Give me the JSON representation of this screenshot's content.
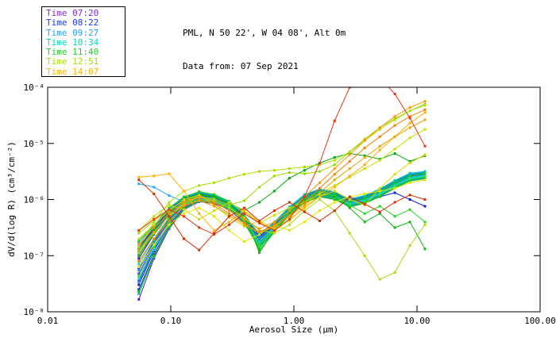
{
  "header": {
    "title_line1": "PML, N 50 22', W 04 08', Alt 0m",
    "title_line2": "Data from: 07 Sep 2021"
  },
  "chart_data": {
    "type": "line",
    "title": "PML, N 50 22', W 04 08', Alt 0m",
    "subtitle": "Data from: 07 Sep 2021",
    "xlabel": "Aerosol Size (μm)",
    "ylabel": "dV/d(log R) (cm³/cm⁻²)",
    "x_scale": "log",
    "y_scale": "log",
    "xlim": [
      0.01,
      100
    ],
    "ylim_log10": [
      -8,
      -4
    ],
    "grid": false,
    "legend_position": "top-left",
    "x_tick_values": [
      0.01,
      0.1,
      1,
      10,
      100
    ],
    "x_tick_labels": [
      "0.01",
      "0.10",
      "1.00",
      "10.00",
      "100.00"
    ],
    "y_tick_exponents": [
      -4,
      -5,
      -6,
      -7,
      -8
    ],
    "y_tick_labels": [
      "10⁻⁴",
      "10⁻⁵",
      "10⁻⁶",
      "10⁻⁷",
      "10⁻⁸"
    ],
    "legend": [
      {
        "label": "Time 07:20",
        "color": "#7b2ce0"
      },
      {
        "label": "Time 08:22",
        "color": "#2038ff"
      },
      {
        "label": "Time 09:27",
        "color": "#28a0ff"
      },
      {
        "label": "Time 10:34",
        "color": "#00e0b0"
      },
      {
        "label": "Time 11:40",
        "color": "#20d020"
      },
      {
        "label": "Time 12:51",
        "color": "#a8e000"
      },
      {
        "label": "Time 14:07",
        "color": "#ffb400"
      }
    ],
    "x_values_um": [
      0.055,
      0.073,
      0.097,
      0.128,
      0.17,
      0.225,
      0.298,
      0.395,
      0.524,
      0.694,
      0.92,
      1.22,
      1.62,
      2.14,
      2.84,
      3.76,
      4.99,
      6.61,
      8.76,
      11.6
    ],
    "series": [
      {
        "time": "07:20",
        "color": "#5a18c8",
        "log10_dVdlogR": [
          -7.78,
          -7.05,
          -6.52,
          -6.18,
          -6.04,
          -6.07,
          -6.18,
          -6.42,
          -6.85,
          -6.55,
          -6.28,
          -6.05,
          -5.94,
          -5.99,
          -6.12,
          -6.06,
          -5.94,
          -5.79,
          -5.66,
          -5.62
        ]
      },
      {
        "time": "07:20",
        "color": "#6a22d8",
        "log10_dVdlogR": [
          -7.32,
          -6.8,
          -6.38,
          -6.1,
          -5.99,
          -6.03,
          -6.14,
          -6.38,
          -6.78,
          -6.5,
          -6.23,
          -6.0,
          -5.9,
          -5.95,
          -6.08,
          -6.02,
          -5.9,
          -5.75,
          -5.62,
          -5.58
        ]
      },
      {
        "time": "07:20",
        "color": "#4810b0",
        "log10_dVdlogR": [
          -7.05,
          -6.62,
          -6.28,
          -6.04,
          -5.94,
          -5.99,
          -6.1,
          -6.34,
          -6.72,
          -6.46,
          -6.19,
          -5.97,
          -5.87,
          -5.92,
          -6.05,
          -5.99,
          -5.87,
          -5.72,
          -5.59,
          -5.55
        ]
      },
      {
        "time": "07:20",
        "color": "#7a2ce0",
        "log10_dVdlogR": [
          -6.88,
          -6.53,
          -6.21,
          -6.0,
          -5.9,
          -5.95,
          -6.07,
          -6.3,
          -6.68,
          -6.43,
          -6.16,
          -5.94,
          -5.84,
          -5.89,
          -6.02,
          -5.96,
          -5.84,
          -5.69,
          -5.56,
          -5.53
        ]
      },
      {
        "time": "07:20",
        "color": "#3c0a9e",
        "log10_dVdlogR": [
          -7.52,
          -6.92,
          -6.45,
          -6.14,
          -6.02,
          -6.05,
          -6.16,
          -6.4,
          -6.82,
          -6.52,
          -6.26,
          -6.03,
          -5.92,
          -5.97,
          -6.1,
          -6.04,
          -5.92,
          -5.77,
          -5.64,
          -5.6
        ]
      },
      {
        "time": "08:22",
        "color": "#1228e8",
        "log10_dVdlogR": [
          -7.6,
          -6.98,
          -6.48,
          -6.16,
          -6.03,
          -6.06,
          -6.17,
          -6.41,
          -6.84,
          -6.54,
          -6.27,
          -6.04,
          -5.93,
          -5.98,
          -6.11,
          -6.05,
          -5.93,
          -5.78,
          -5.65,
          -5.61
        ]
      },
      {
        "time": "08:22",
        "color": "#0a1cd0",
        "log10_dVdlogR": [
          -7.22,
          -6.75,
          -6.35,
          -6.08,
          -5.97,
          -6.01,
          -6.12,
          -6.36,
          -6.76,
          -6.48,
          -6.21,
          -5.99,
          -5.89,
          -5.94,
          -6.07,
          -6.01,
          -5.95,
          -5.88,
          -6.0,
          -6.12
        ]
      },
      {
        "time": "08:22",
        "color": "#2238ff",
        "log10_dVdlogR": [
          -7.0,
          -6.6,
          -6.26,
          -6.02,
          -5.93,
          -5.97,
          -6.09,
          -6.33,
          -6.71,
          -6.45,
          -6.18,
          -5.96,
          -5.86,
          -5.91,
          -6.04,
          -5.98,
          -5.86,
          -5.71,
          -5.58,
          -5.54
        ]
      },
      {
        "time": "08:22",
        "color": "#0518c0",
        "log10_dVdlogR": [
          -6.85,
          -6.51,
          -6.19,
          -5.98,
          -5.89,
          -5.94,
          -6.06,
          -6.29,
          -6.66,
          -6.42,
          -6.15,
          -5.93,
          -5.83,
          -5.88,
          -6.01,
          -5.95,
          -5.83,
          -5.68,
          -5.55,
          -5.52
        ]
      },
      {
        "time": "08:22",
        "color": "#1c30f4",
        "log10_dVdlogR": [
          -7.45,
          -6.88,
          -6.43,
          -6.12,
          -6.01,
          -6.04,
          -6.15,
          -6.39,
          -6.8,
          -6.51,
          -6.24,
          -6.02,
          -5.91,
          -5.96,
          -6.09,
          -6.03,
          -5.91,
          -5.76,
          -5.63,
          -5.59
        ]
      },
      {
        "time": "09:27",
        "color": "#28a8ff",
        "log10_dVdlogR": [
          -5.72,
          -5.78,
          -5.93,
          -6.04,
          -6.01,
          -6.04,
          -6.15,
          -6.38,
          -6.78,
          -6.5,
          -6.23,
          -6.01,
          -5.9,
          -5.95,
          -6.08,
          -6.02,
          -5.9,
          -5.75,
          -5.62,
          -5.58
        ]
      },
      {
        "time": "09:27",
        "color": "#1492ec",
        "log10_dVdlogR": [
          -7.26,
          -6.77,
          -6.36,
          -6.09,
          -5.98,
          -6.02,
          -6.13,
          -6.37,
          -6.77,
          -6.49,
          -6.22,
          -6.0,
          -5.89,
          -5.94,
          -6.07,
          -6.01,
          -5.89,
          -5.74,
          -5.61,
          -5.57
        ]
      },
      {
        "time": "09:27",
        "color": "#0a84dc",
        "log10_dVdlogR": [
          -6.96,
          -6.58,
          -6.24,
          -6.01,
          -5.92,
          -5.96,
          -6.08,
          -6.32,
          -6.7,
          -6.44,
          -6.17,
          -5.95,
          -5.85,
          -5.9,
          -6.03,
          -5.97,
          -5.85,
          -5.7,
          -5.57,
          -5.53
        ]
      },
      {
        "time": "09:27",
        "color": "#2ea2f8",
        "log10_dVdlogR": [
          -7.48,
          -6.9,
          -6.44,
          -6.13,
          -6.01,
          -6.05,
          -6.16,
          -6.4,
          -6.81,
          -6.52,
          -6.25,
          -6.02,
          -5.92,
          -5.97,
          -6.1,
          -6.04,
          -5.92,
          -5.77,
          -5.64,
          -5.6
        ]
      },
      {
        "time": "09:27",
        "color": "#10b2f0",
        "log10_dVdlogR": [
          -6.8,
          -6.49,
          -6.17,
          -5.97,
          -5.88,
          -5.93,
          -6.05,
          -6.28,
          -6.64,
          -6.41,
          -6.14,
          -5.92,
          -5.82,
          -5.87,
          -6.0,
          -5.94,
          -5.82,
          -5.67,
          -5.54,
          -5.51
        ]
      },
      {
        "time": "10:34",
        "color": "#00c8a4",
        "log10_dVdlogR": [
          -7.68,
          -7.02,
          -6.5,
          -6.17,
          -6.03,
          -6.06,
          -6.17,
          -6.41,
          -6.86,
          -6.55,
          -6.28,
          -6.05,
          -5.94,
          -5.99,
          -6.12,
          -6.06,
          -5.94,
          -5.79,
          -5.66,
          -5.61
        ]
      },
      {
        "time": "10:34",
        "color": "#00dcc0",
        "log10_dVdlogR": [
          -7.15,
          -6.72,
          -6.33,
          -6.07,
          -5.96,
          -6.0,
          -6.11,
          -6.35,
          -6.75,
          -6.47,
          -6.2,
          -5.98,
          -5.88,
          -5.93,
          -6.06,
          -6.0,
          -5.88,
          -5.73,
          -5.6,
          -5.56
        ]
      },
      {
        "time": "10:34",
        "color": "#00b48c",
        "log10_dVdlogR": [
          -6.92,
          -6.56,
          -6.23,
          -6.0,
          -5.91,
          -5.95,
          -6.07,
          -6.31,
          -6.69,
          -6.43,
          -6.16,
          -5.94,
          -5.84,
          -5.89,
          -6.02,
          -5.96,
          -5.84,
          -5.69,
          -5.56,
          -5.52
        ]
      },
      {
        "time": "10:34",
        "color": "#0ce4cc",
        "log10_dVdlogR": [
          -7.4,
          -6.86,
          -6.42,
          -6.11,
          -6.0,
          -6.03,
          -6.14,
          -6.38,
          -6.79,
          -6.5,
          -6.23,
          -6.01,
          -5.9,
          -5.95,
          -6.08,
          -6.02,
          -5.9,
          -5.75,
          -5.62,
          -5.58
        ]
      },
      {
        "time": "10:34",
        "color": "#00c2b2",
        "log10_dVdlogR": [
          -6.76,
          -6.47,
          -6.16,
          -5.96,
          -5.87,
          -5.92,
          -6.04,
          -6.27,
          -6.62,
          -6.4,
          -6.13,
          -5.91,
          -5.81,
          -5.86,
          -5.99,
          -5.93,
          -5.81,
          -5.66,
          -5.53,
          -5.5
        ]
      },
      {
        "time": "11:40",
        "color": "#14bc14",
        "log10_dVdlogR": [
          -7.64,
          -7.0,
          -6.49,
          -6.16,
          -6.02,
          -6.05,
          -6.16,
          -6.4,
          -6.88,
          -6.56,
          -6.29,
          -6.06,
          -5.95,
          -6.0,
          -6.13,
          -6.07,
          -5.95,
          -5.8,
          -5.67,
          -5.63
        ]
      },
      {
        "time": "11:40",
        "color": "#24d424",
        "log10_dVdlogR": [
          -7.1,
          -6.7,
          -6.32,
          -6.06,
          -5.95,
          -5.99,
          -6.1,
          -6.34,
          -6.8,
          -6.48,
          -6.21,
          -5.99,
          -5.89,
          -5.94,
          -6.1,
          -6.25,
          -6.12,
          -6.3,
          -6.18,
          -6.4
        ]
      },
      {
        "time": "11:40",
        "color": "#06aa0e",
        "log10_dVdlogR": [
          -6.88,
          -6.54,
          -6.22,
          -5.99,
          -5.9,
          -5.94,
          -6.06,
          -6.2,
          -6.05,
          -5.85,
          -5.62,
          -5.48,
          -5.35,
          -5.25,
          -5.18,
          -5.22,
          -5.28,
          -5.18,
          -5.32,
          -5.22
        ]
      },
      {
        "time": "11:40",
        "color": "#30e030",
        "log10_dVdlogR": [
          -7.36,
          -6.84,
          -6.41,
          -6.1,
          -5.99,
          -6.02,
          -6.13,
          -6.37,
          -6.84,
          -6.53,
          -6.26,
          -6.03,
          -5.92,
          -5.97,
          -6.1,
          -6.04,
          -5.92,
          -5.77,
          -5.64,
          -5.59
        ]
      },
      {
        "time": "11:40",
        "color": "#1cc81c",
        "log10_dVdlogR": [
          -6.73,
          -6.46,
          -6.15,
          -5.95,
          -5.86,
          -5.91,
          -6.03,
          -6.26,
          -6.95,
          -6.55,
          -6.18,
          -5.96,
          -5.86,
          -5.91,
          -6.04,
          -5.98,
          -5.86,
          -5.71,
          -5.58,
          -5.54
        ]
      },
      {
        "time": "11:40",
        "color": "#0cb814",
        "log10_dVdlogR": [
          -7.0,
          -6.61,
          -6.27,
          -6.03,
          -5.92,
          -5.96,
          -6.08,
          -6.32,
          -6.92,
          -6.58,
          -6.24,
          -6.0,
          -5.9,
          -5.95,
          -6.15,
          -6.4,
          -6.25,
          -6.5,
          -6.4,
          -6.88
        ]
      },
      {
        "time": "12:51",
        "color": "#9cd800",
        "log10_dVdlogR": [
          -6.6,
          -6.38,
          -6.18,
          -6.03,
          -5.94,
          -5.99,
          -6.1,
          -6.02,
          -5.78,
          -5.58,
          -5.52,
          -5.54,
          -5.5,
          -5.38,
          -5.15,
          -4.92,
          -4.72,
          -4.56,
          -4.42,
          -4.3
        ]
      },
      {
        "time": "12:51",
        "color": "#aae000",
        "log10_dVdlogR": [
          -6.85,
          -6.4,
          -6.05,
          -5.85,
          -5.75,
          -5.7,
          -5.62,
          -5.55,
          -5.5,
          -5.48,
          -5.45,
          -5.42,
          -5.38,
          -5.3,
          -5.15,
          -4.95,
          -4.75,
          -4.58,
          -4.42,
          -4.32
        ]
      },
      {
        "time": "12:51",
        "color": "#c4e000",
        "log10_dVdlogR": [
          -6.55,
          -6.3,
          -6.1,
          -6.18,
          -6.35,
          -6.2,
          -6.05,
          -6.22,
          -6.42,
          -6.28,
          -6.15,
          -6.05,
          -5.9,
          -5.75,
          -5.6,
          -5.45,
          -5.3,
          -5.1,
          -4.9,
          -4.75
        ]
      },
      {
        "time": "12:51",
        "color": "#e4e400",
        "log10_dVdlogR": [
          -7.2,
          -6.8,
          -6.45,
          -6.25,
          -6.15,
          -6.3,
          -6.55,
          -6.75,
          -6.62,
          -6.45,
          -6.55,
          -6.4,
          -6.2,
          -6.05,
          -5.95,
          -5.9,
          -5.85,
          -5.8,
          -5.7,
          -5.65
        ]
      },
      {
        "time": "12:51",
        "color": "#b2d810",
        "log10_dVdlogR": [
          -6.95,
          -6.6,
          -6.28,
          -6.08,
          -5.96,
          -6.02,
          -6.15,
          -6.32,
          -6.55,
          -6.6,
          -6.45,
          -6.2,
          -6.0,
          -6.2,
          -6.6,
          -7.0,
          -7.42,
          -7.3,
          -6.82,
          -6.45
        ]
      },
      {
        "time": "12:51",
        "color": "#d8d800",
        "log10_dVdlogR": [
          -6.7,
          -6.45,
          -6.2,
          -6.0,
          -5.92,
          -6.1,
          -6.32,
          -6.48,
          -6.38,
          -6.52,
          -6.38,
          -6.12,
          -5.95,
          -5.85,
          -6.0,
          -6.1,
          -5.8,
          -5.55,
          -5.35,
          -5.2
        ]
      },
      {
        "time": "14:07",
        "color": "#ffb000",
        "log10_dVdlogR": [
          -5.6,
          -5.58,
          -5.54,
          -5.85,
          -6.25,
          -6.55,
          -6.4,
          -6.2,
          -6.4,
          -6.56,
          -6.35,
          -6.15,
          -5.95,
          -5.78,
          -5.58,
          -5.38,
          -5.12,
          -4.88,
          -4.64,
          -4.45
        ]
      },
      {
        "time": "14:07",
        "color": "#ff9400",
        "log10_dVdlogR": [
          -6.8,
          -6.5,
          -6.25,
          -6.05,
          -5.95,
          -6.05,
          -6.2,
          -6.35,
          -6.52,
          -6.4,
          -6.2,
          -5.95,
          -5.7,
          -5.45,
          -5.2,
          -4.95,
          -4.72,
          -4.52,
          -4.36,
          -4.25
        ]
      },
      {
        "time": "14:07",
        "color": "#f08000",
        "log10_dVdlogR": [
          -7.1,
          -6.7,
          -6.38,
          -6.12,
          -6.0,
          -6.08,
          -6.25,
          -6.42,
          -6.58,
          -6.45,
          -6.28,
          -6.05,
          -5.8,
          -5.55,
          -5.32,
          -5.08,
          -4.88,
          -4.68,
          -4.52,
          -4.4
        ]
      },
      {
        "time": "14:07",
        "color": "#e8a400",
        "log10_dVdlogR": [
          -6.9,
          -6.58,
          -6.3,
          -6.1,
          -6.02,
          -6.12,
          -6.28,
          -6.45,
          -6.6,
          -6.48,
          -6.3,
          -6.1,
          -5.88,
          -5.65,
          -5.45,
          -5.25,
          -5.05,
          -4.88,
          -4.72,
          -4.58
        ]
      },
      {
        "time": "14:07",
        "color": "#e83410",
        "log10_dVdlogR": [
          -6.55,
          -6.35,
          -6.18,
          -6.3,
          -6.5,
          -6.62,
          -6.45,
          -6.25,
          -6.42,
          -6.55,
          -6.35,
          -5.95,
          -5.35,
          -4.6,
          -4.0,
          -3.7,
          -3.82,
          -4.12,
          -4.55,
          -5.05
        ]
      },
      {
        "time": "14:07",
        "color": "#d62c00",
        "log10_dVdlogR": [
          -5.65,
          -5.9,
          -6.3,
          -6.7,
          -6.9,
          -6.6,
          -6.3,
          -6.15,
          -6.38,
          -6.2,
          -6.05,
          -6.22,
          -6.38,
          -6.2,
          -5.95,
          -6.08,
          -6.22,
          -6.05,
          -5.92,
          -6.0
        ]
      }
    ]
  }
}
